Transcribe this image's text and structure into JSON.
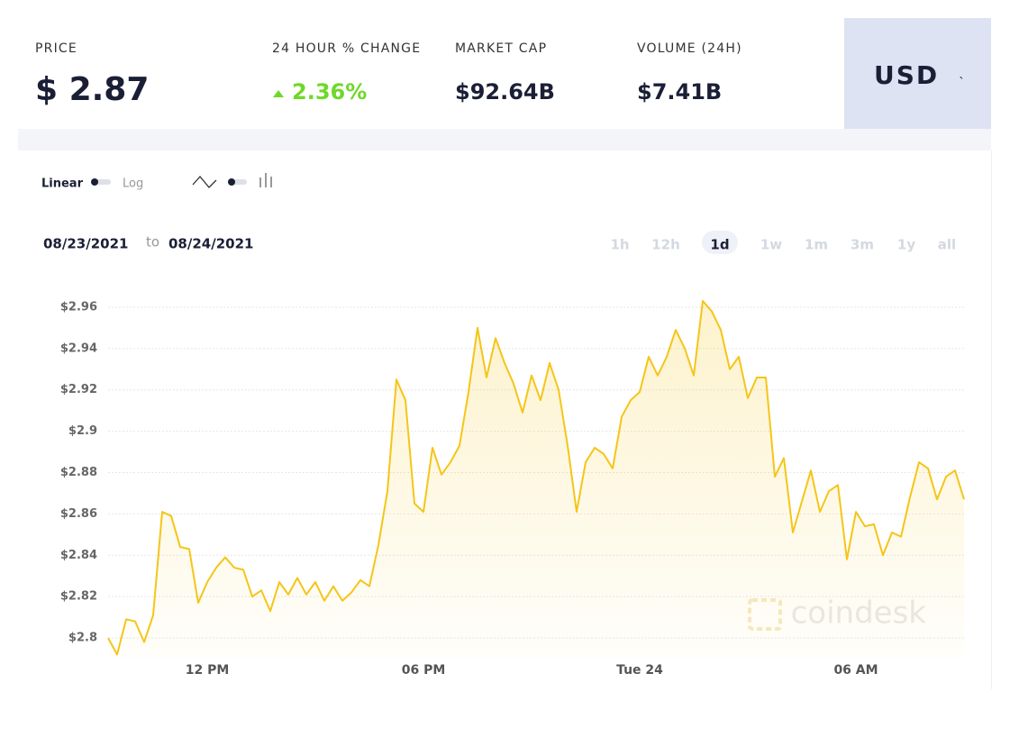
{
  "stats": {
    "price": {
      "label": "PRICE",
      "value": "$ 2.87"
    },
    "change": {
      "label": "24 HOUR % CHANGE",
      "value": "2.36%"
    },
    "market_cap": {
      "label": "MARKET CAP",
      "value": "$92.64B"
    },
    "volume": {
      "label": "VOLUME (24H)",
      "value": "$7.41B"
    }
  },
  "currency": "USD",
  "controls": {
    "linear": "Linear",
    "log": "Log"
  },
  "date_range": {
    "from": "08/23/2021",
    "to_word": "to",
    "to": "08/24/2021"
  },
  "timeframes": [
    "1h",
    "12h",
    "1d",
    "1w",
    "1m",
    "3m",
    "1y",
    "all"
  ],
  "active_timeframe": "1d",
  "watermark": "coindesk",
  "chart_data": {
    "type": "line",
    "color": "#f5c518",
    "grid": true,
    "ylim": [
      2.79,
      2.97
    ],
    "yticks": [
      {
        "value": 2.8,
        "label": "$2.8"
      },
      {
        "value": 2.82,
        "label": "$2.82"
      },
      {
        "value": 2.84,
        "label": "$2.84"
      },
      {
        "value": 2.86,
        "label": "$2.86"
      },
      {
        "value": 2.88,
        "label": "$2.88"
      },
      {
        "value": 2.9,
        "label": "$2.9"
      },
      {
        "value": 2.92,
        "label": "$2.92"
      },
      {
        "value": 2.94,
        "label": "$2.94"
      },
      {
        "value": 2.96,
        "label": "$2.96"
      }
    ],
    "categories": [
      null,
      null,
      null,
      null,
      null,
      null,
      null,
      null,
      null,
      null,
      null,
      "12 PM",
      null,
      null,
      null,
      null,
      null,
      null,
      null,
      null,
      null,
      null,
      null,
      null,
      null,
      null,
      null,
      null,
      null,
      null,
      null,
      null,
      null,
      null,
      null,
      "06 PM",
      null,
      null,
      null,
      null,
      null,
      null,
      null,
      null,
      null,
      null,
      null,
      null,
      null,
      null,
      null,
      null,
      null,
      null,
      null,
      null,
      null,
      null,
      null,
      "Tue 24",
      null,
      null,
      null,
      null,
      null,
      null,
      null,
      null,
      null,
      null,
      null,
      null,
      null,
      null,
      null,
      null,
      null,
      null,
      null,
      null,
      null,
      null,
      null,
      "06 AM",
      null,
      null,
      null,
      null,
      null,
      null,
      null,
      null,
      null,
      null,
      null,
      null
    ],
    "values": [
      2.8,
      2.792,
      2.809,
      2.808,
      2.798,
      2.811,
      2.861,
      2.859,
      2.844,
      2.843,
      2.817,
      2.827,
      2.834,
      2.839,
      2.834,
      2.833,
      2.82,
      2.823,
      2.813,
      2.827,
      2.821,
      2.829,
      2.821,
      2.827,
      2.818,
      2.825,
      2.818,
      2.822,
      2.828,
      2.825,
      2.845,
      2.871,
      2.925,
      2.915,
      2.865,
      2.861,
      2.892,
      2.879,
      2.885,
      2.893,
      2.919,
      2.95,
      2.926,
      2.945,
      2.933,
      2.923,
      2.909,
      2.927,
      2.915,
      2.933,
      2.92,
      2.893,
      2.861,
      2.885,
      2.892,
      2.889,
      2.882,
      2.907,
      2.915,
      2.919,
      2.936,
      2.927,
      2.936,
      2.949,
      2.94,
      2.927,
      2.963,
      2.958,
      2.949,
      2.93,
      2.936,
      2.916,
      2.926,
      2.926,
      2.878,
      2.887,
      2.851,
      2.866,
      2.881,
      2.861,
      2.871,
      2.874,
      2.838,
      2.861,
      2.854,
      2.855,
      2.84,
      2.851,
      2.849,
      2.868,
      2.885,
      2.882,
      2.867,
      2.878,
      2.881,
      2.867
    ]
  }
}
